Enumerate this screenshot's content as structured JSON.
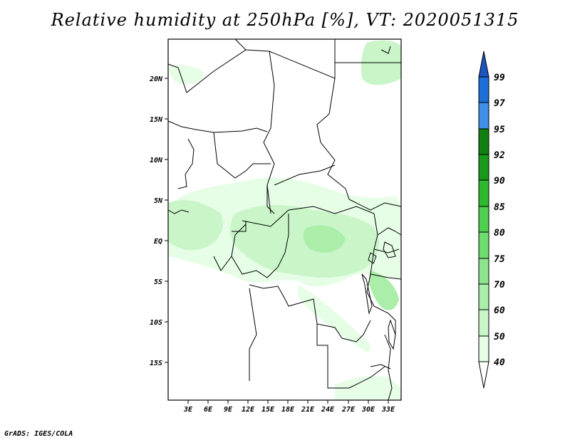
{
  "title": "Relative humidity at 250hPa [%], VT: 2020051315",
  "footer": "GrADS: IGES/COLA",
  "map": {
    "lat_labels": [
      "20N",
      "15N",
      "10N",
      "5N",
      "EQ",
      "5S",
      "10S",
      "15S"
    ],
    "lon_labels": [
      "3E",
      "6E",
      "9E",
      "12E",
      "15E",
      "18E",
      "21E",
      "24E",
      "27E",
      "30E",
      "33E"
    ]
  },
  "colorbar": {
    "levels": [
      "40",
      "50",
      "60",
      "70",
      "75",
      "80",
      "85",
      "90",
      "92",
      "95",
      "97",
      "99"
    ],
    "colors": [
      "#ffffff",
      "#e6fde6",
      "#c9f5c9",
      "#aaeeaa",
      "#8ee48e",
      "#6edc6e",
      "#4fcf4f",
      "#2fb92f",
      "#199919",
      "#108010",
      "#3f8fe8",
      "#1e6fd8",
      "#1a55c0"
    ]
  },
  "field_colors": {
    "light": "#e6fde6",
    "mid": "#c9f5c9",
    "dark": "#aaeeaa"
  }
}
